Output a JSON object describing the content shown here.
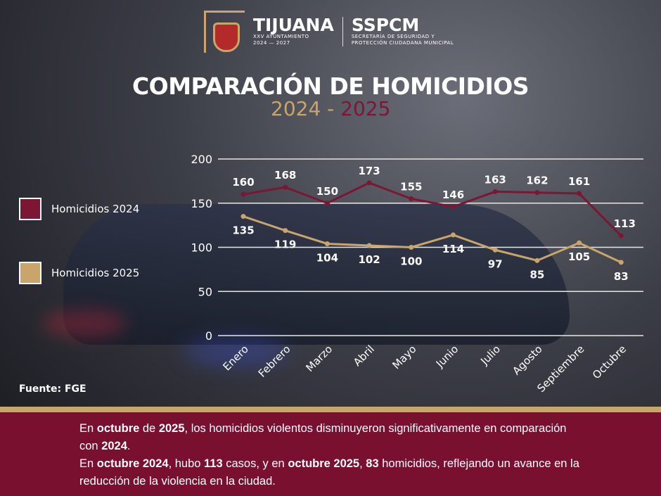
{
  "header": {
    "brand": "TIJUANA",
    "brand_sub1": "XXV AYUNTAMIENTO",
    "brand_sub2": "2024 — 2027",
    "agency": "SSPCM",
    "agency_sub1": "SECRETARÍA DE SEGURIDAD Y",
    "agency_sub2": "PROTECCIÓN CIUDADANA MUNICIPAL"
  },
  "chart_data": {
    "type": "line",
    "title": "COMPARACIÓN DE HOMICIDIOS",
    "subtitle": {
      "a": "2024",
      "sep": " - ",
      "b": "2025"
    },
    "categories": [
      "Enero",
      "Febrero",
      "Marzo",
      "Abril",
      "Mayo",
      "Junio",
      "Julio",
      "Agosto",
      "Septiembre",
      "Octubre"
    ],
    "series": [
      {
        "name": "Homicidios 2024",
        "color": "#7d1634",
        "values": [
          160,
          168,
          150,
          173,
          155,
          146,
          163,
          162,
          161,
          113
        ]
      },
      {
        "name": "Homicidios 2025",
        "color": "#c9a46b",
        "values": [
          135,
          119,
          104,
          102,
          100,
          114,
          97,
          85,
          105,
          83
        ]
      }
    ],
    "yticks": [
      0,
      50,
      100,
      150,
      200
    ],
    "ylim": [
      0,
      200
    ],
    "grid": true,
    "legend_position": "left"
  },
  "source": "Fuente: FGE",
  "paragraph": [
    [
      [
        "En ",
        0
      ],
      [
        "octubre",
        1
      ],
      [
        " de ",
        0
      ],
      [
        "2025",
        1
      ],
      [
        ", los homicidios violentos disminuyeron significativamente en comparación con ",
        0
      ],
      [
        "2024",
        1
      ],
      [
        ".",
        0
      ]
    ],
    [
      [
        "En ",
        0
      ],
      [
        "octubre 2024",
        1
      ],
      [
        ", hubo ",
        0
      ],
      [
        "113",
        1
      ],
      [
        " casos, y en ",
        0
      ],
      [
        "octubre 2025",
        1
      ],
      [
        ", ",
        0
      ],
      [
        "83",
        1
      ],
      [
        " homicidios, reflejando un avance en la reducción de la violencia en la ciudad.",
        0
      ]
    ]
  ]
}
